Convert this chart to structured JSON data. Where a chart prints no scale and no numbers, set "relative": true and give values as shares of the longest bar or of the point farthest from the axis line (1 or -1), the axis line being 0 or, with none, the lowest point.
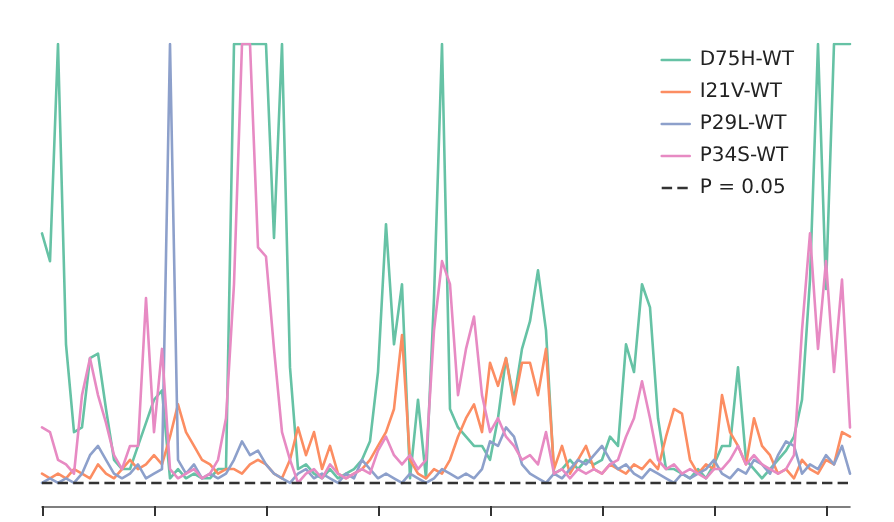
{
  "chart_data": {
    "type": "line",
    "relative": true,
    "legend": "top right",
    "marker": "none",
    "line_style": "solid",
    "categories": [
      null,
      null,
      null,
      null,
      null,
      null,
      null,
      null,
      null,
      null,
      null,
      null,
      null,
      null,
      null,
      null,
      null,
      null,
      null,
      null,
      null,
      null,
      null,
      null,
      null,
      null,
      null,
      null,
      null,
      null,
      null,
      null,
      null,
      null,
      null,
      null,
      null,
      null,
      null,
      null,
      null,
      null,
      null,
      null,
      null,
      null,
      null,
      null,
      null,
      null,
      null,
      null,
      null,
      null,
      null,
      null,
      null,
      null,
      null,
      null,
      null,
      null,
      null,
      null,
      null,
      null,
      null,
      null,
      null,
      null,
      null,
      null,
      null,
      null,
      null,
      null,
      null,
      null,
      null,
      null,
      null,
      null,
      null,
      null,
      null,
      null,
      null,
      null,
      null,
      null,
      null,
      null,
      null,
      null,
      null,
      null,
      null,
      null,
      null,
      null,
      null,
      null
    ],
    "series": [
      {
        "name": "D75H-WT",
        "color": "#66c2a5",
        "values": [
          0.59,
          0.53,
          1,
          0.35,
          0.16,
          0.17,
          0.32,
          0.33,
          0.21,
          0.1,
          0.08,
          0.08,
          0.13,
          0.18,
          0.23,
          0.25,
          0.06,
          0.08,
          0.06,
          0.07,
          0.06,
          0.06,
          0.08,
          0.08,
          1,
          1,
          1,
          1,
          1,
          0.58,
          1,
          0.3,
          0.08,
          0.09,
          0.07,
          0.06,
          0.08,
          0.06,
          0.07,
          0.08,
          0.1,
          0.14,
          0.29,
          0.61,
          0.35,
          0.48,
          0.06,
          0.23,
          0.06,
          0.45,
          1,
          0.21,
          0.17,
          0.15,
          0.13,
          0.13,
          0.1,
          0.19,
          0.32,
          0.23,
          0.34,
          0.4,
          0.51,
          0.38,
          0.07,
          0.08,
          0.1,
          0.08,
          0.1,
          0.09,
          0.1,
          0.15,
          0.13,
          0.35,
          0.29,
          0.48,
          0.43,
          0.19,
          0.08,
          0.08,
          0.07,
          0.06,
          0.08,
          0.06,
          0.09,
          0.13,
          0.13,
          0.3,
          0.1,
          0.08,
          0.06,
          0.08,
          0.1,
          0.12,
          0.15,
          0.23,
          0.49,
          1,
          0.47,
          1,
          1,
          1
        ]
      },
      {
        "name": "I21V-WT",
        "color": "#fc8d62",
        "values": [
          0.07,
          0.06,
          0.07,
          0.06,
          0.08,
          0.07,
          0.06,
          0.09,
          0.07,
          0.06,
          0.08,
          0.1,
          0.08,
          0.09,
          0.11,
          0.09,
          0.15,
          0.22,
          0.16,
          0.13,
          0.1,
          0.09,
          0.07,
          0.08,
          0.08,
          0.07,
          0.09,
          0.1,
          0.09,
          0.07,
          0.06,
          0.1,
          0.17,
          0.11,
          0.16,
          0.08,
          0.13,
          0.07,
          0.06,
          0.07,
          0.08,
          0.1,
          0.13,
          0.16,
          0.21,
          0.37,
          0.1,
          0.07,
          0.06,
          0.08,
          0.07,
          0.1,
          0.15,
          0.19,
          0.22,
          0.16,
          0.31,
          0.26,
          0.32,
          0.22,
          0.31,
          0.31,
          0.24,
          0.34,
          0.08,
          0.13,
          0.07,
          0.1,
          0.13,
          0.08,
          0.07,
          0.09,
          0.08,
          0.07,
          0.09,
          0.08,
          0.1,
          0.08,
          0.15,
          0.21,
          0.2,
          0.1,
          0.07,
          0.09,
          0.08,
          0.24,
          0.16,
          0.13,
          0.09,
          0.19,
          0.13,
          0.11,
          0.07,
          0.08,
          0.06,
          0.1,
          0.08,
          0.07,
          0.1,
          0.09,
          0.16,
          0.15
        ]
      },
      {
        "name": "P29L-WT",
        "color": "#8da0cb",
        "values": [
          0.05,
          0.06,
          0.05,
          0.06,
          0.05,
          0.07,
          0.11,
          0.13,
          0.1,
          0.07,
          0.06,
          0.07,
          0.09,
          0.06,
          0.07,
          0.08,
          1,
          0.1,
          0.07,
          0.09,
          0.06,
          0.07,
          0.06,
          0.07,
          0.1,
          0.14,
          0.11,
          0.12,
          0.09,
          0.07,
          0.06,
          0.05,
          0.07,
          0.08,
          0.06,
          0.07,
          0.06,
          0.05,
          0.07,
          0.06,
          0.1,
          0.08,
          0.06,
          0.07,
          0.06,
          0.05,
          0.07,
          0.06,
          0.05,
          0.06,
          0.08,
          0.07,
          0.06,
          0.07,
          0.06,
          0.08,
          0.14,
          0.13,
          0.17,
          0.15,
          0.09,
          0.07,
          0.06,
          0.05,
          0.07,
          0.06,
          0.08,
          0.1,
          0.09,
          0.11,
          0.13,
          0.1,
          0.08,
          0.09,
          0.07,
          0.06,
          0.08,
          0.07,
          0.06,
          0.05,
          0.07,
          0.06,
          0.07,
          0.08,
          0.1,
          0.07,
          0.06,
          0.08,
          0.07,
          0.1,
          0.09,
          0.07,
          0.11,
          0.14,
          0.13,
          0.07,
          0.09,
          0.08,
          0.11,
          0.09,
          0.13,
          0.07
        ]
      },
      {
        "name": "P34S-WT",
        "color": "#e78ac3",
        "values": [
          0.17,
          0.16,
          0.1,
          0.09,
          0.07,
          0.24,
          0.32,
          0.24,
          0.18,
          0.11,
          0.08,
          0.13,
          0.13,
          0.45,
          0.16,
          0.34,
          0.08,
          0.06,
          0.07,
          0.08,
          0.06,
          0.07,
          0.1,
          0.19,
          0.48,
          1,
          1,
          0.56,
          0.54,
          0.34,
          0.16,
          0.1,
          0.05,
          0.07,
          0.08,
          0.06,
          0.09,
          0.07,
          0.06,
          0.07,
          0.08,
          0.07,
          0.12,
          0.15,
          0.11,
          0.09,
          0.11,
          0.08,
          0.1,
          0.38,
          0.53,
          0.48,
          0.24,
          0.34,
          0.41,
          0.24,
          0.16,
          0.19,
          0.15,
          0.13,
          0.1,
          0.11,
          0.09,
          0.16,
          0.07,
          0.08,
          0.06,
          0.08,
          0.07,
          0.08,
          0.07,
          0.09,
          0.1,
          0.15,
          0.19,
          0.27,
          0.19,
          0.1,
          0.08,
          0.09,
          0.07,
          0.08,
          0.07,
          0.06,
          0.08,
          0.08,
          0.1,
          0.13,
          0.09,
          0.11,
          0.09,
          0.08,
          0.07,
          0.08,
          0.11,
          0.38,
          0.59,
          0.34,
          0.53,
          0.29,
          0.49,
          0.17
        ]
      }
    ],
    "ref_lines": [
      {
        "axis": "y",
        "value": 0.05,
        "label": "P = 0.05",
        "color": "#333333",
        "line_style": "dashed"
      }
    ]
  }
}
